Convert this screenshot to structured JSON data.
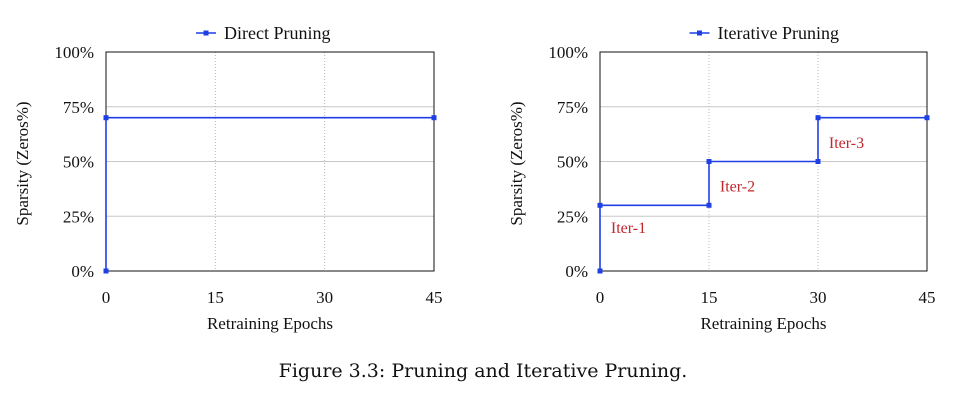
{
  "colors": {
    "series": "#1f3fe6",
    "annotation": "#c0282e",
    "grid": "#c8c8c8",
    "axis": "#111111"
  },
  "chart_data": [
    {
      "type": "line",
      "step": true,
      "title": "",
      "xlabel": "Retraining Epochs",
      "ylabel": "Sparsity (Zeros%)",
      "xlim": [
        0,
        45
      ],
      "ylim": [
        0,
        100
      ],
      "xticks": [
        0,
        15,
        30,
        45
      ],
      "xtick_labels": [
        "0",
        "15",
        "30",
        "45"
      ],
      "yticks": [
        0,
        25,
        50,
        75,
        100
      ],
      "ytick_labels": [
        "0%",
        "25%",
        "50%",
        "75%",
        "100%"
      ],
      "grid": true,
      "legend_position": "top-center",
      "series": [
        {
          "name": "Direct Pruning",
          "x": [
            0,
            0,
            45
          ],
          "y": [
            0,
            70,
            70
          ]
        }
      ],
      "annotations": []
    },
    {
      "type": "line",
      "step": true,
      "title": "",
      "xlabel": "Retraining Epochs",
      "ylabel": "Sparsity (Zeros%)",
      "xlim": [
        0,
        45
      ],
      "ylim": [
        0,
        100
      ],
      "xticks": [
        0,
        15,
        30,
        45
      ],
      "xtick_labels": [
        "0",
        "15",
        "30",
        "45"
      ],
      "yticks": [
        0,
        25,
        50,
        75,
        100
      ],
      "ytick_labels": [
        "0%",
        "25%",
        "50%",
        "75%",
        "100%"
      ],
      "grid": true,
      "legend_position": "top-center",
      "series": [
        {
          "name": "Iterative Pruning",
          "x": [
            0,
            0,
            15,
            15,
            30,
            30,
            45
          ],
          "y": [
            0,
            30,
            30,
            50,
            50,
            70,
            70
          ]
        }
      ],
      "annotations": [
        {
          "text": "Iter-1",
          "x": 1.5,
          "y": 20
        },
        {
          "text": "Iter-2",
          "x": 16.5,
          "y": 39
        },
        {
          "text": "Iter-3",
          "x": 31.5,
          "y": 59
        }
      ]
    }
  ],
  "caption": "Figure 3.3: Pruning and Iterative Pruning."
}
